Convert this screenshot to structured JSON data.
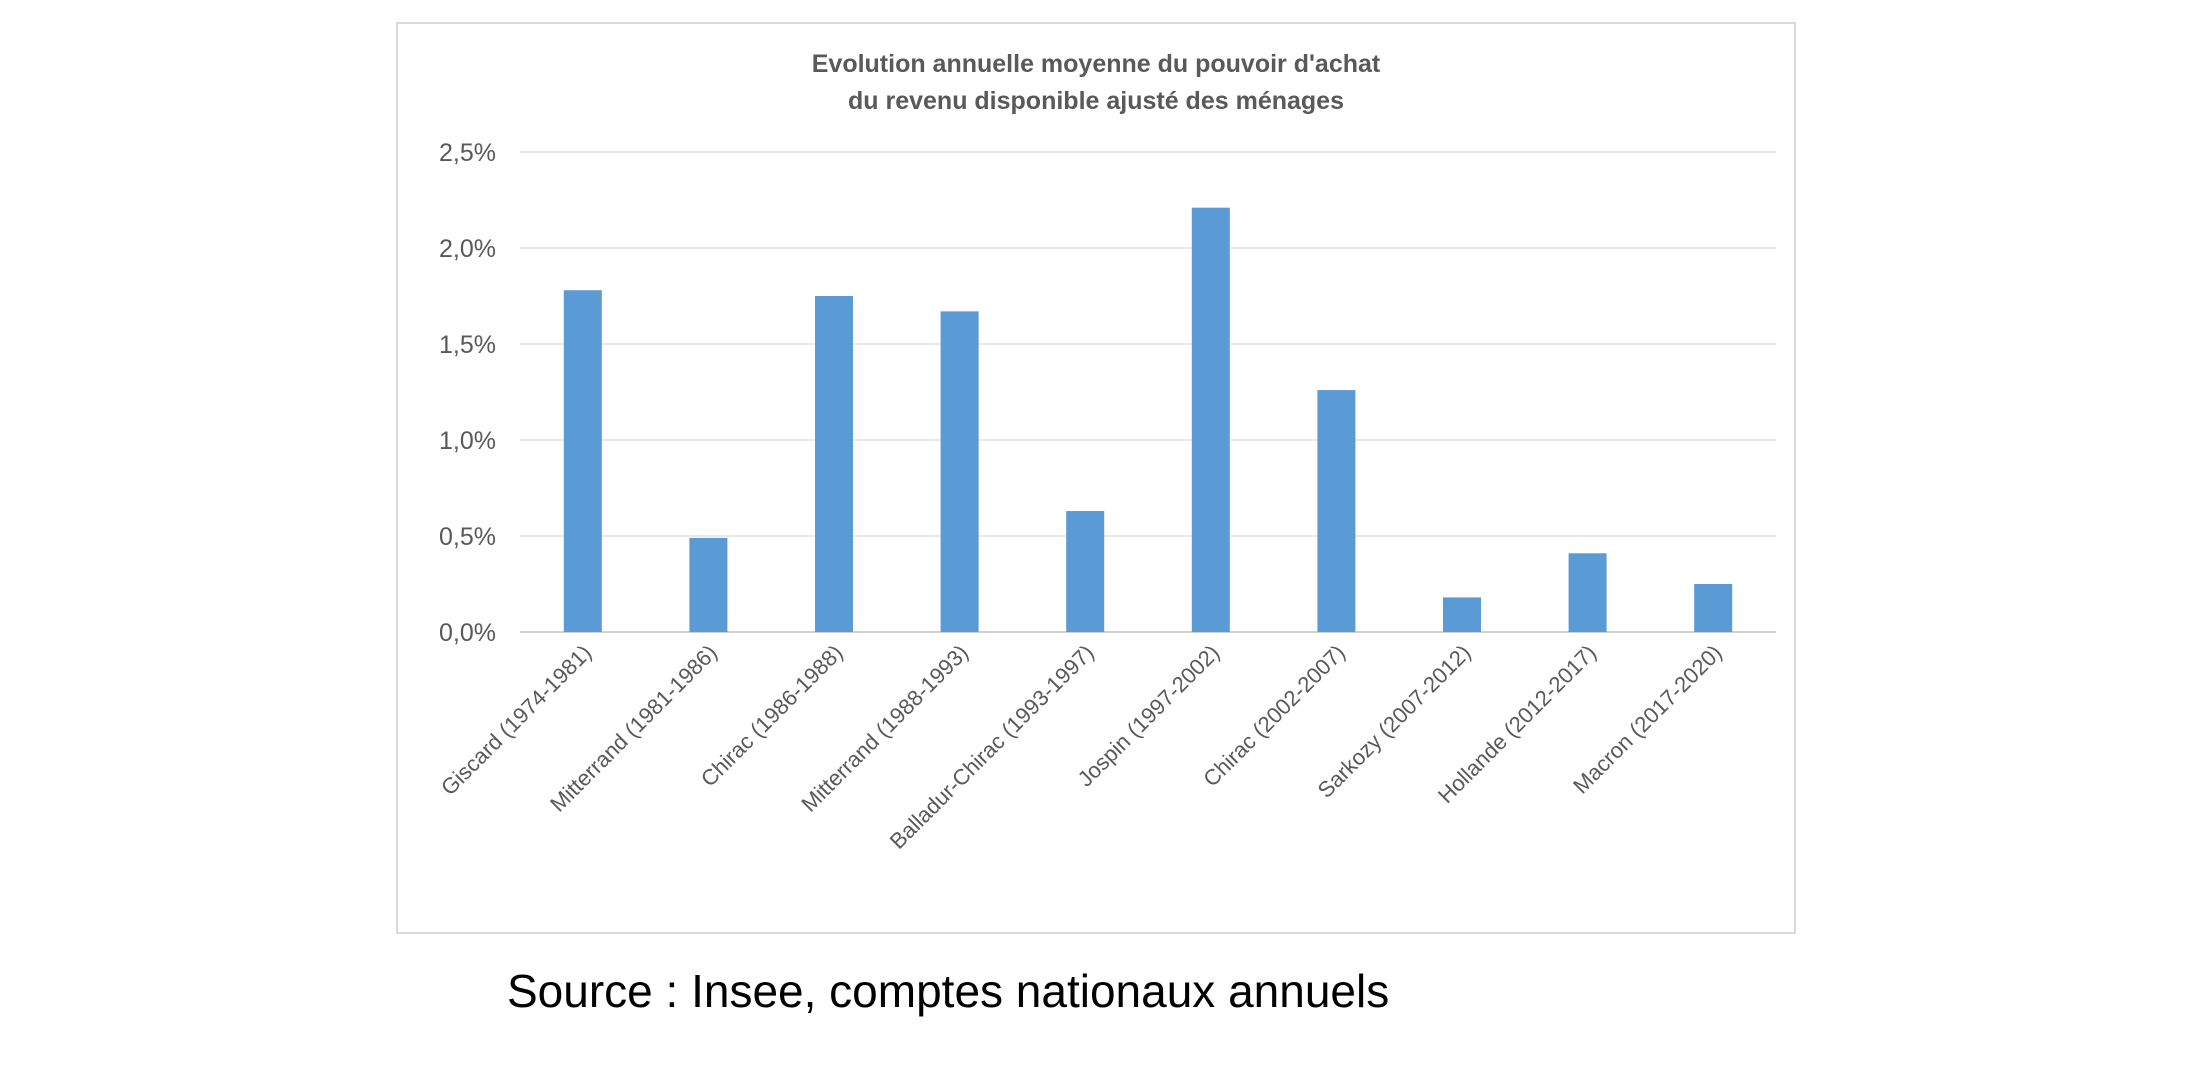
{
  "chart_data": {
    "type": "bar",
    "title": [
      "Evolution annuelle moyenne du pouvoir d'achat",
      "du revenu disponible ajusté des ménages"
    ],
    "categories": [
      "Giscard (1974-1981)",
      "Mitterrand (1981-1986)",
      "Chirac (1986-1988)",
      "Mitterrand (1988-1993)",
      "Balladur-Chirac (1993-1997)",
      "Jospin (1997-2002)",
      "Chirac (2002-2007)",
      "Sarkozy (2007-2012)",
      "Hollande (2012-2017)",
      "Macron (2017-2020)"
    ],
    "values": [
      1.78,
      0.49,
      1.75,
      1.67,
      0.63,
      2.21,
      1.26,
      0.18,
      0.41,
      0.25
    ],
    "unit": "%",
    "ylim": [
      0,
      2.5
    ],
    "yticks": [
      {
        "value": 0,
        "label": "0,0%"
      },
      {
        "value": 0.5,
        "label": "0,5%"
      },
      {
        "value": 1.0,
        "label": "1,0%"
      },
      {
        "value": 1.5,
        "label": "1,5%"
      },
      {
        "value": 2.0,
        "label": "2,0%"
      },
      {
        "value": 2.5,
        "label": "2,5%"
      }
    ],
    "grid": true,
    "legend": "none",
    "bar_color": "#5b9bd5"
  },
  "source": "Source : Insee, comptes nationaux annuels"
}
